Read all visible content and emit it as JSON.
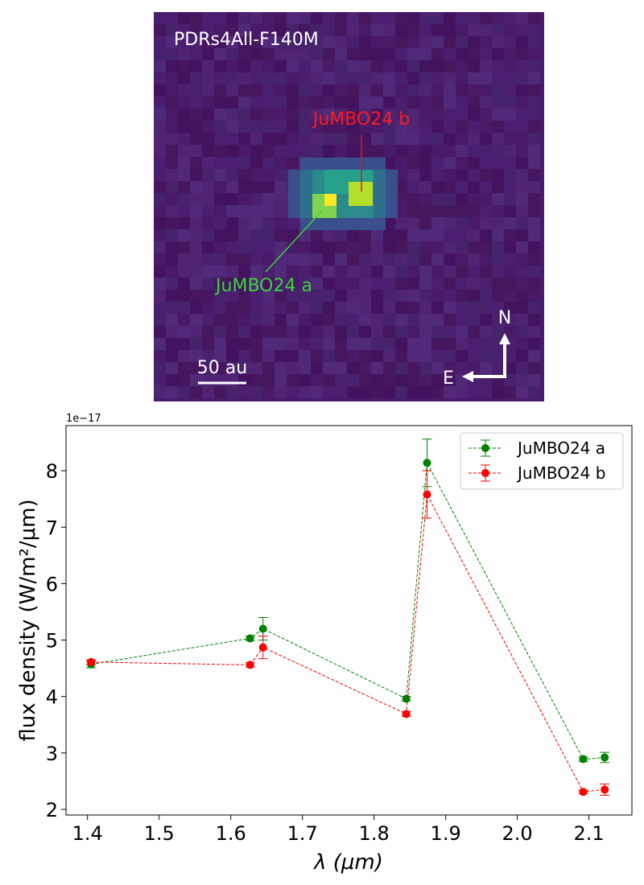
{
  "image_panel": {
    "label": "PDRs4All-F140M",
    "annotation_b": "JuMBO24 b",
    "annotation_a": "JuMBO24 a",
    "scale_bar_label": "50 au",
    "compass_north": "N",
    "compass_east": "E",
    "colors": {
      "background": "#4b1a6e",
      "label_b": "#ff1a1a",
      "label_a": "#3cd13c",
      "text": "#ffffff"
    }
  },
  "chart_data": {
    "type": "line",
    "title": "",
    "xlabel": "λ (μm)",
    "ylabel": "flux density (W/m²/μm)",
    "offset_label": "1e−17",
    "xlim": [
      1.37,
      2.16
    ],
    "ylim": [
      1.9,
      8.8
    ],
    "xticks": [
      1.4,
      1.5,
      1.6,
      1.7,
      1.8,
      1.9,
      2.0,
      2.1
    ],
    "xtick_labels": [
      "1.4",
      "1.5",
      "1.6",
      "1.7",
      "1.8",
      "1.9",
      "2.0",
      "2.1"
    ],
    "yticks": [
      2,
      3,
      4,
      5,
      6,
      7,
      8
    ],
    "ytick_labels": [
      "2",
      "3",
      "4",
      "5",
      "6",
      "7",
      "8"
    ],
    "legend_position": "top-right",
    "series": [
      {
        "name": "JuMBO24 a",
        "color": "#008000",
        "x": [
          1.405,
          1.627,
          1.645,
          1.845,
          1.874,
          2.092,
          2.122
        ],
        "y": [
          4.57,
          5.03,
          5.2,
          3.96,
          8.14,
          2.89,
          2.92
        ],
        "err": [
          0.06,
          0.04,
          0.2,
          0.04,
          0.42,
          0.04,
          0.09
        ]
      },
      {
        "name": "JuMBO24 b",
        "color": "#ff0000",
        "x": [
          1.405,
          1.627,
          1.645,
          1.845,
          1.874,
          2.092,
          2.122
        ],
        "y": [
          4.61,
          4.56,
          4.87,
          3.69,
          7.58,
          2.31,
          2.35
        ],
        "err": [
          0.04,
          0.04,
          0.2,
          0.04,
          0.42,
          0.03,
          0.1
        ]
      }
    ]
  }
}
